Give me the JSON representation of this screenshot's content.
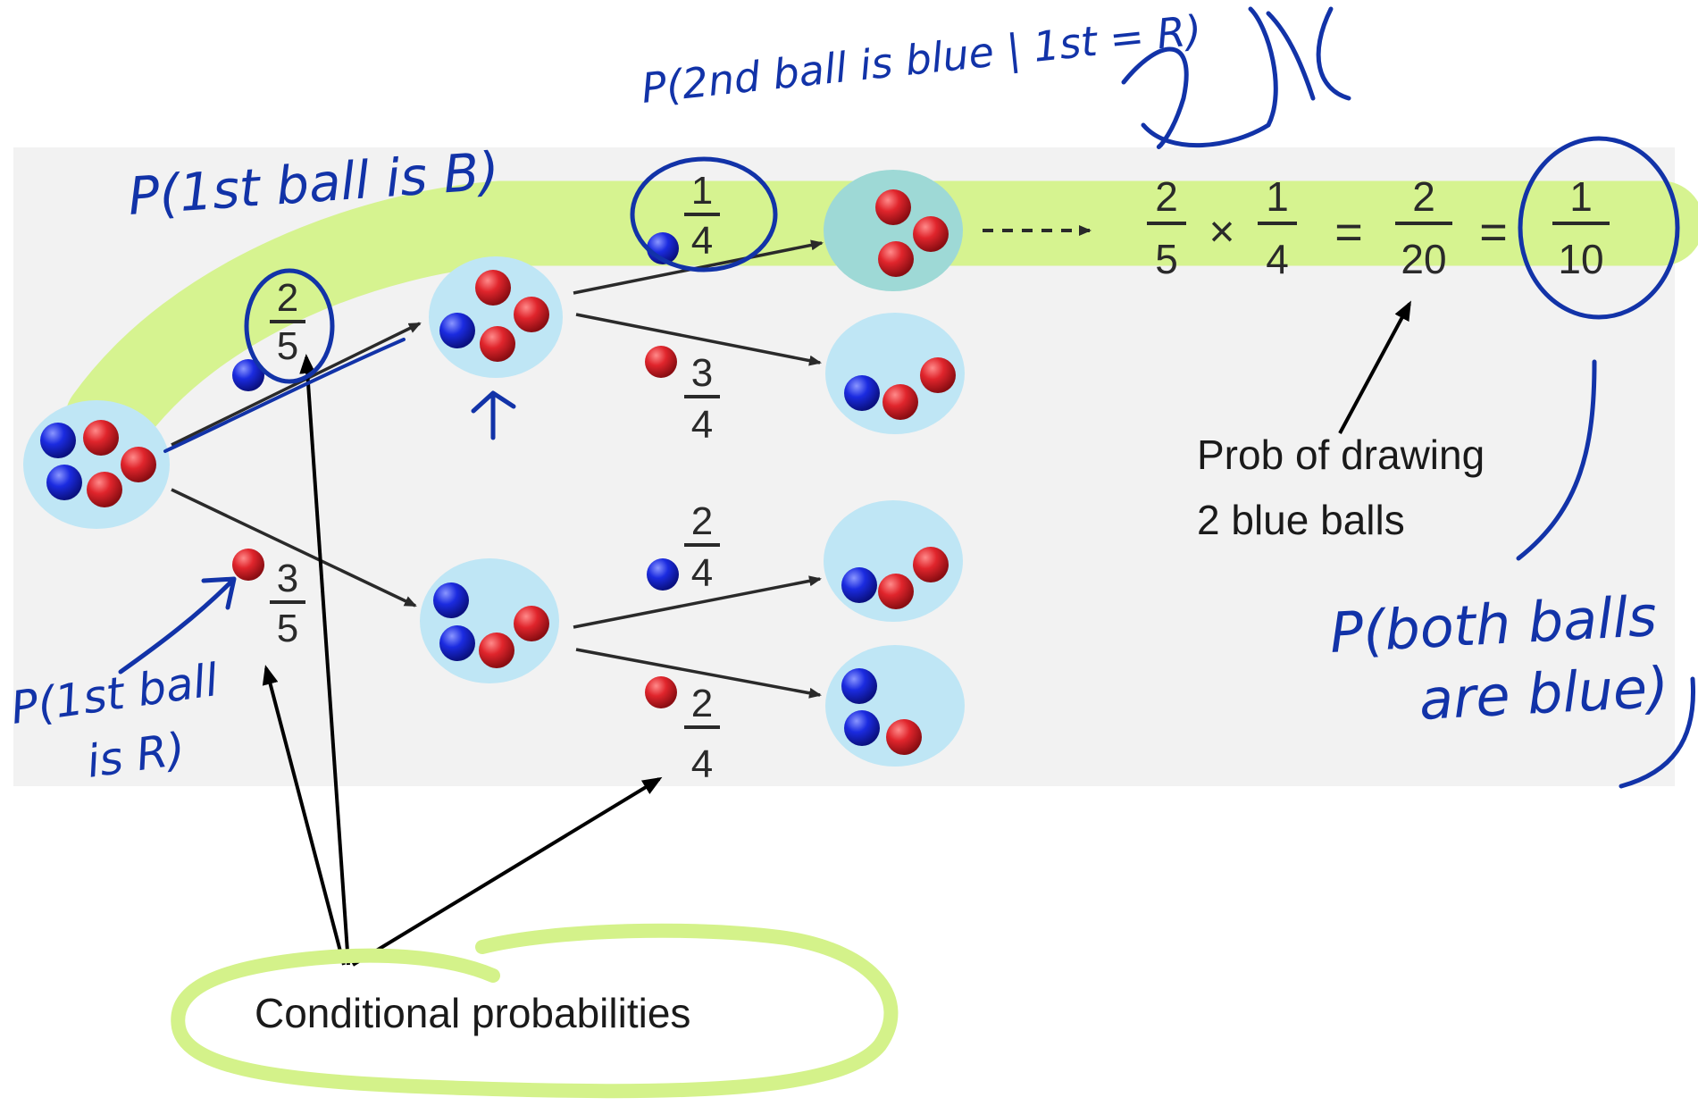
{
  "colors": {
    "panel_bg": "#f2f2f2",
    "node_bg": "#bfe6f5",
    "highlight": "#d4f28a",
    "ink_blue": "#1233a8",
    "ball_red": "#d0262c",
    "ball_blue": "#1a2ad0"
  },
  "tree": {
    "first_draw": {
      "blue": {
        "num": "2",
        "den": "5"
      },
      "red": {
        "num": "3",
        "den": "5"
      }
    },
    "second_draw_after_blue": {
      "blue": {
        "num": "1",
        "den": "4"
      },
      "red": {
        "num": "3",
        "den": "4"
      }
    },
    "second_draw_after_red": {
      "blue": {
        "num": "2",
        "den": "4"
      },
      "red": {
        "num": "2",
        "den": "4"
      }
    }
  },
  "equation": {
    "a_num": "2",
    "a_den": "5",
    "times": "×",
    "b_num": "1",
    "b_den": "4",
    "equals": "=",
    "c_num": "2",
    "c_den": "20",
    "d_num": "1",
    "d_den": "10"
  },
  "annotations": {
    "prob_line1": "Prob of drawing",
    "prob_line2": "2 blue balls",
    "conditional": "Conditional probabilities",
    "p_first_blue": "P(1st ball is B)",
    "p_second_blue": "P(2nd ball is blue | 1st = R)",
    "p_first_red_line1": "P(1st ball",
    "p_first_red_line2": "is R)",
    "p_both_line1": "P(both balls",
    "p_both_line2": "are blue)"
  }
}
